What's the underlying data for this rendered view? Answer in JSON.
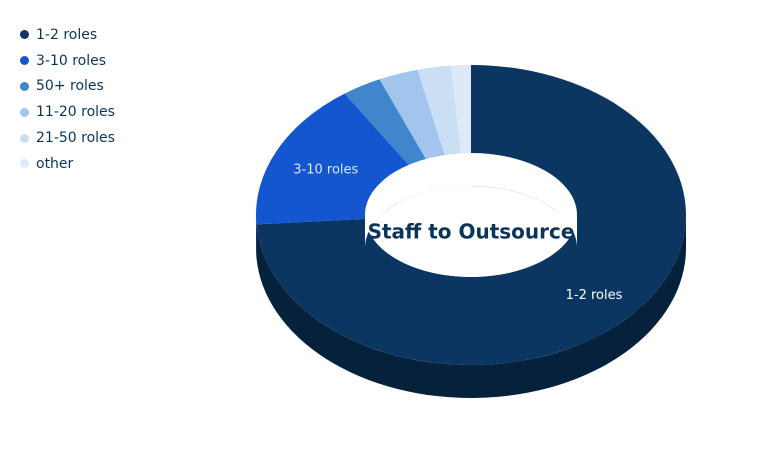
{
  "chart_data": {
    "type": "pie",
    "title": "Staff to Outsource",
    "categories": [
      "1-2 roles",
      "3-10 roles",
      "50+ roles",
      "11-20 roles",
      "21-50 roles",
      "other"
    ],
    "values": [
      74,
      16,
      3,
      3,
      2.5,
      1.5
    ],
    "colors": [
      "#0a3661",
      "#1356d0",
      "#3f86cc",
      "#a2c5ed",
      "#cadef4",
      "#dde9f7"
    ],
    "data_labels": [
      {
        "category": "1-2 roles",
        "text": "1-2 roles"
      },
      {
        "category": "3-10 roles",
        "text": "3-10 roles"
      }
    ],
    "legend_position": "top-left"
  },
  "legend": {
    "items": [
      {
        "label": "1-2 roles",
        "color": "#0a3661"
      },
      {
        "label": "3-10 roles",
        "color": "#1356d0"
      },
      {
        "label": "50+ roles",
        "color": "#3f86cc"
      },
      {
        "label": "11-20 roles",
        "color": "#a2c5ed"
      },
      {
        "label": "21-50 roles",
        "color": "#cadef4"
      },
      {
        "label": "other",
        "color": "#dde9f7"
      }
    ]
  }
}
